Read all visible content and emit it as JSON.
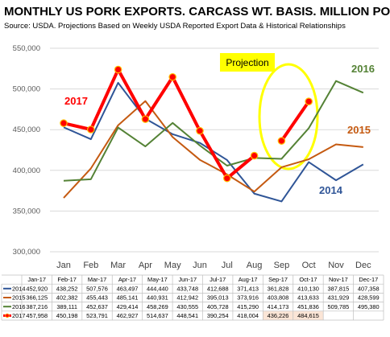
{
  "chart_data": {
    "type": "line",
    "title": "MONTHLY US PORK EXPORTS.  CARCASS WT. BASIS.  MILLION POUNDS",
    "subtitle": "Source:  USDA.  Projections Based on Weekly USDA Reported Export Data & Historical Relationships",
    "categories": [
      "Jan",
      "Feb",
      "Mar",
      "Apr",
      "May",
      "Jun",
      "Jul",
      "Aug",
      "Sep",
      "Oct",
      "Nov",
      "Dec"
    ],
    "ylim": [
      300000,
      550000
    ],
    "yticks": [
      "300,000",
      "350,000",
      "400,000",
      "450,000",
      "500,000",
      "550,000"
    ],
    "ytick_values": [
      300000,
      350000,
      400000,
      450000,
      500000,
      550000
    ],
    "grid": true,
    "projection_label": "Projection",
    "series": [
      {
        "name": "2014",
        "color": "#2f5597",
        "values": [
          452920,
          438252,
          507576,
          463497,
          444440,
          433748,
          412688,
          371413,
          361828,
          410130,
          387815,
          407358
        ],
        "labels": [
          "452,920",
          "438,252",
          "507,576",
          "463,497",
          "444,440",
          "433,748",
          "412,688",
          "371,413",
          "361,828",
          "410,130",
          "387,815",
          "407,358"
        ]
      },
      {
        "name": "2015",
        "color": "#c55a11",
        "values": [
          366125,
          402382,
          455443,
          485141,
          440931,
          412942,
          395013,
          373916,
          403808,
          413633,
          431929,
          428599
        ],
        "labels": [
          "366,125",
          "402,382",
          "455,443",
          "485,141",
          "440,931",
          "412,942",
          "395,013",
          "373,916",
          "403,808",
          "413,633",
          "431,929",
          "428,599"
        ]
      },
      {
        "name": "2016",
        "color": "#548235",
        "values": [
          387216,
          389111,
          452637,
          429414,
          458269,
          430555,
          405728,
          415290,
          414173,
          451836,
          509785,
          495380
        ],
        "labels": [
          "387,216",
          "389,111",
          "452,637",
          "429,414",
          "458,269",
          "430,555",
          "405,728",
          "415,290",
          "414,173",
          "451,836",
          "509,785",
          "495,380"
        ]
      },
      {
        "name": "2017",
        "color": "#ff0000",
        "values": [
          457958,
          450198,
          523791,
          462927,
          514637,
          448541,
          390254,
          418004,
          436226,
          484615,
          null,
          null
        ],
        "labels": [
          "457,958",
          "450,198",
          "523,791",
          "462,927",
          "514,637",
          "448,541",
          "390,254",
          "418,004",
          "436,226",
          "484,615",
          "",
          ""
        ]
      }
    ],
    "table_headers": [
      "Jan-17",
      "Feb-17",
      "Mar-17",
      "Apr-17",
      "May-17",
      "Jun-17",
      "Jul-17",
      "Aug-17",
      "Sep-17",
      "Oct-17",
      "Nov-17",
      "Dec-17"
    ]
  }
}
